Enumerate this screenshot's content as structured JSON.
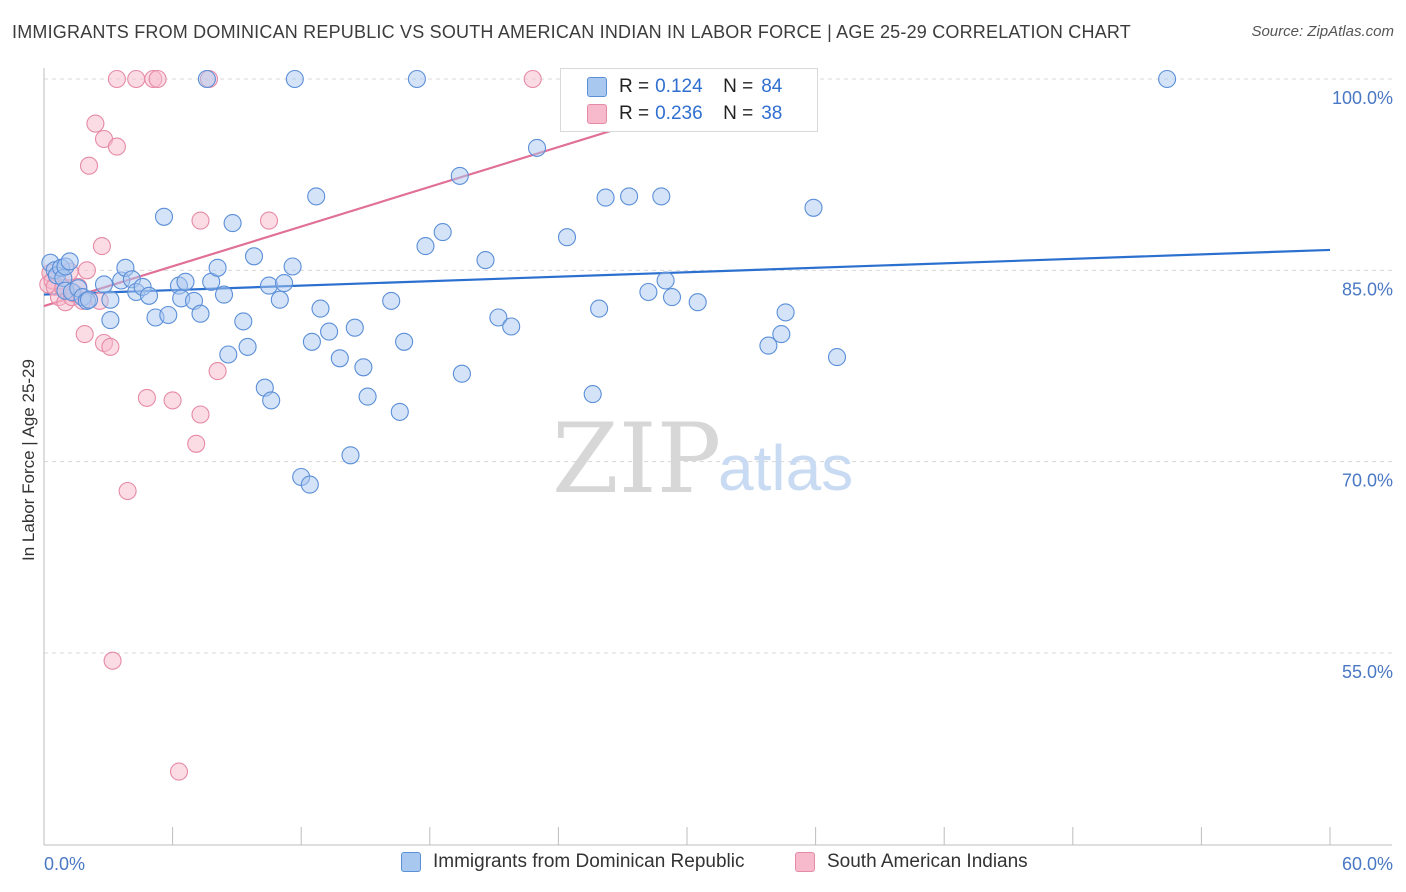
{
  "title": "IMMIGRANTS FROM DOMINICAN REPUBLIC VS SOUTH AMERICAN INDIAN IN LABOR FORCE | AGE 25-29 CORRELATION CHART",
  "source": "Source: ZipAtlas.com",
  "watermark": {
    "zip": "ZIP",
    "atlas": "atlas"
  },
  "legend": {
    "r_label": "R =",
    "n_label": "N =",
    "rows": [
      {
        "r": "0.124",
        "n": "84",
        "color": "#a9c8ef",
        "border": "#5b8fd8"
      },
      {
        "r": "0.236",
        "n": "38",
        "color": "#f7b9cc",
        "border": "#e68aa6"
      }
    ]
  },
  "bottom_legend": [
    "Immigrants from Dominican Republic",
    "South American Indians"
  ],
  "chart_data": {
    "type": "scatter",
    "title": "IMMIGRANTS FROM DOMINICAN REPUBLIC VS SOUTH AMERICAN INDIAN IN LABOR FORCE | AGE 25-29 CORRELATION CHART",
    "xlabel": "",
    "ylabel": "In Labor Force | Age 25-29",
    "x_tick_labels": [
      "0.0%",
      "60.0%"
    ],
    "y_tick_labels": [
      "100.0%",
      "85.0%",
      "70.0%",
      "55.0%"
    ],
    "y_ticks": [
      100,
      85,
      70,
      55
    ],
    "xlim": [
      0,
      60
    ],
    "ylim": [
      42,
      102
    ],
    "grid": true,
    "series": [
      {
        "name": "Immigrants from Dominican Republic",
        "color": "#a9c8ef",
        "stroke": "#5b8fd8",
        "trend": {
          "x": [
            0,
            60
          ],
          "y": [
            83.1,
            86.6
          ],
          "color": "#2b6fcf"
        },
        "points": [
          [
            0.3,
            85.6
          ],
          [
            0.5,
            85.0
          ],
          [
            0.6,
            84.6
          ],
          [
            0.8,
            85.2
          ],
          [
            0.9,
            84.4
          ],
          [
            1.0,
            85.3
          ],
          [
            1.2,
            85.7
          ],
          [
            1.0,
            83.4
          ],
          [
            1.3,
            83.3
          ],
          [
            1.6,
            83.6
          ],
          [
            1.8,
            82.9
          ],
          [
            2.0,
            82.6
          ],
          [
            2.1,
            82.7
          ],
          [
            2.8,
            83.9
          ],
          [
            3.1,
            82.7
          ],
          [
            3.1,
            81.1
          ],
          [
            3.6,
            84.2
          ],
          [
            3.8,
            85.2
          ],
          [
            4.1,
            84.3
          ],
          [
            4.3,
            83.3
          ],
          [
            4.6,
            83.7
          ],
          [
            4.9,
            83.0
          ],
          [
            5.2,
            81.3
          ],
          [
            5.6,
            89.2
          ],
          [
            5.8,
            81.5
          ],
          [
            6.3,
            83.8
          ],
          [
            6.4,
            82.8
          ],
          [
            6.6,
            84.1
          ],
          [
            7.0,
            82.6
          ],
          [
            7.3,
            81.6
          ],
          [
            7.6,
            100.0
          ],
          [
            7.8,
            84.1
          ],
          [
            8.1,
            85.2
          ],
          [
            8.4,
            83.1
          ],
          [
            8.6,
            78.4
          ],
          [
            8.8,
            88.7
          ],
          [
            9.3,
            81.0
          ],
          [
            9.5,
            79.0
          ],
          [
            9.8,
            86.1
          ],
          [
            10.3,
            75.8
          ],
          [
            10.5,
            83.8
          ],
          [
            10.6,
            74.8
          ],
          [
            11.0,
            82.7
          ],
          [
            11.2,
            84.0
          ],
          [
            11.6,
            85.3
          ],
          [
            11.7,
            100.0
          ],
          [
            12.0,
            68.8
          ],
          [
            12.4,
            68.2
          ],
          [
            12.5,
            79.4
          ],
          [
            12.7,
            90.8
          ],
          [
            12.9,
            82.0
          ],
          [
            13.3,
            80.2
          ],
          [
            13.8,
            78.1
          ],
          [
            14.3,
            70.5
          ],
          [
            14.5,
            80.5
          ],
          [
            14.9,
            77.4
          ],
          [
            15.1,
            75.1
          ],
          [
            16.2,
            82.6
          ],
          [
            16.6,
            73.9
          ],
          [
            16.8,
            79.4
          ],
          [
            17.4,
            100.0
          ],
          [
            17.8,
            86.9
          ],
          [
            18.6,
            88.0
          ],
          [
            19.4,
            92.4
          ],
          [
            19.5,
            76.9
          ],
          [
            20.6,
            85.8
          ],
          [
            21.2,
            81.3
          ],
          [
            21.8,
            80.6
          ],
          [
            23.0,
            94.6
          ],
          [
            24.4,
            87.6
          ],
          [
            25.6,
            75.3
          ],
          [
            25.9,
            82.0
          ],
          [
            26.2,
            90.7
          ],
          [
            27.3,
            90.8
          ],
          [
            28.2,
            83.3
          ],
          [
            28.8,
            90.8
          ],
          [
            29.0,
            84.2
          ],
          [
            29.3,
            82.9
          ],
          [
            30.5,
            82.5
          ],
          [
            33.8,
            79.1
          ],
          [
            34.4,
            80.0
          ],
          [
            34.6,
            81.7
          ],
          [
            35.9,
            89.9
          ],
          [
            37.0,
            78.2
          ],
          [
            52.4,
            100.0
          ]
        ]
      },
      {
        "name": "South American Indians",
        "color": "#f7b9cc",
        "stroke": "#e68aa6",
        "trend": {
          "x": [
            0,
            28.5
          ],
          "y": [
            82.2,
            97.0
          ],
          "color": "#e07097"
        },
        "points": [
          [
            0.2,
            83.9
          ],
          [
            0.3,
            84.8
          ],
          [
            0.4,
            84.2
          ],
          [
            0.5,
            83.7
          ],
          [
            0.7,
            82.9
          ],
          [
            0.9,
            83.6
          ],
          [
            1.0,
            82.5
          ],
          [
            1.2,
            84.9
          ],
          [
            1.3,
            82.9
          ],
          [
            1.4,
            83.2
          ],
          [
            1.6,
            83.7
          ],
          [
            1.8,
            82.6
          ],
          [
            1.9,
            80.0
          ],
          [
            2.0,
            85.0
          ],
          [
            2.1,
            93.2
          ],
          [
            2.4,
            96.5
          ],
          [
            2.6,
            82.6
          ],
          [
            2.7,
            86.9
          ],
          [
            2.8,
            79.3
          ],
          [
            2.8,
            95.3
          ],
          [
            3.1,
            79.0
          ],
          [
            3.2,
            54.4
          ],
          [
            3.4,
            94.7
          ],
          [
            3.4,
            100.0
          ],
          [
            3.9,
            67.7
          ],
          [
            4.3,
            100.0
          ],
          [
            4.8,
            75.0
          ],
          [
            5.1,
            100.0
          ],
          [
            5.3,
            100.0
          ],
          [
            6.0,
            74.8
          ],
          [
            6.3,
            45.7
          ],
          [
            7.1,
            71.4
          ],
          [
            7.3,
            73.7
          ],
          [
            7.3,
            88.9
          ],
          [
            7.7,
            100.0
          ],
          [
            8.1,
            77.1
          ],
          [
            10.5,
            88.9
          ],
          [
            22.8,
            100.0
          ]
        ]
      }
    ]
  }
}
